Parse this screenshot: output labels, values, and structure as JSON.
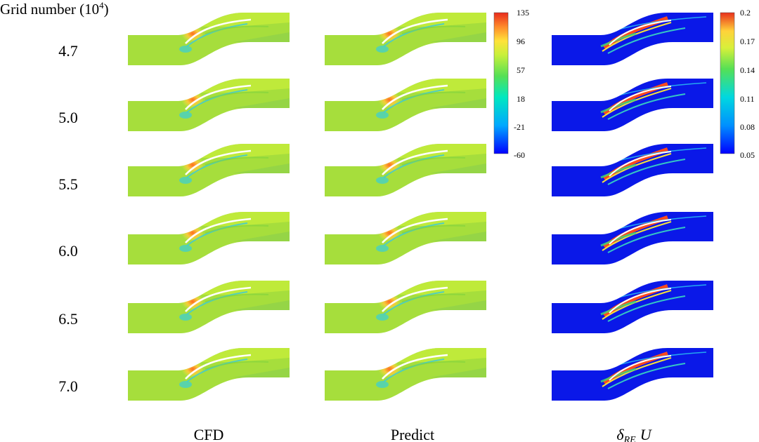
{
  "title": {
    "text": "Grid number (10",
    "sup": "4",
    "close": ")"
  },
  "rows": [
    "4.7",
    "5.0",
    "5.5",
    "6.0",
    "6.5",
    "7.0"
  ],
  "columns": [
    {
      "label": "CFD"
    },
    {
      "label": "Predict"
    },
    {
      "label_symbol": "δ",
      "label_sub": "RE",
      "label_var": "U"
    }
  ],
  "colorbar_velocity": {
    "ticks": [
      "135",
      "96",
      "57",
      "18",
      "-21",
      "-60"
    ]
  },
  "colorbar_error": {
    "ticks": [
      "0.2",
      "0.17",
      "0.14",
      "0.11",
      "0.08",
      "0.05"
    ]
  },
  "colors": {
    "field_base": "#a8e03a",
    "field_high": "#ff8a2a",
    "field_low": "#26c6e8",
    "error_base": "#0a1fe6",
    "error_high": "#f2401c",
    "error_mid": "#37d65a"
  }
}
